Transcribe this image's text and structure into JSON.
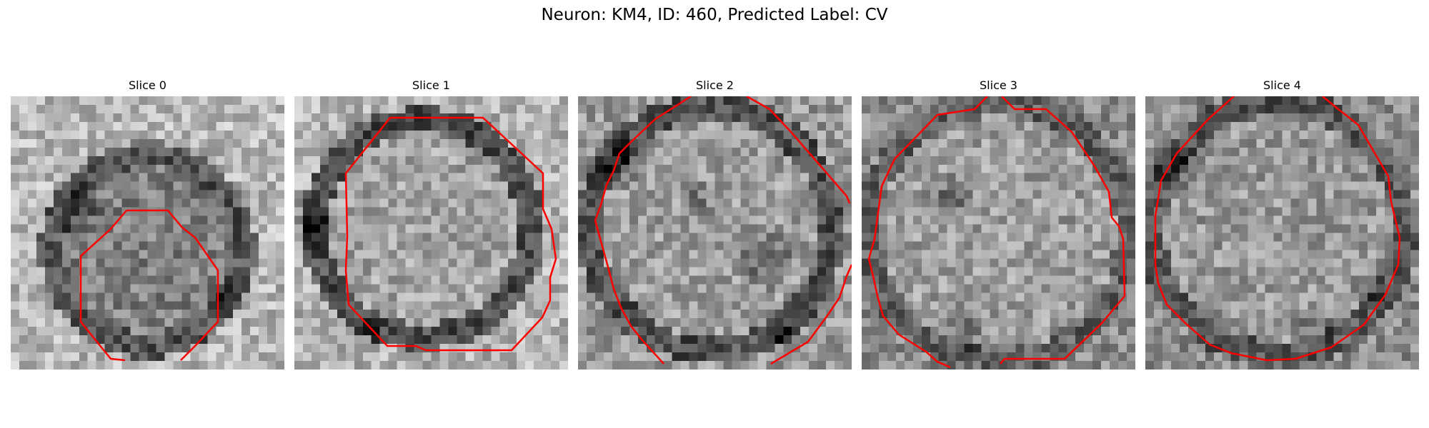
{
  "figure": {
    "title": "Neuron: KM4, ID: 460, Predicted Label: CV",
    "contour_color": "#ff0000",
    "panels": [
      {
        "title": "Slice 0"
      },
      {
        "title": "Slice 1"
      },
      {
        "title": "Slice 2"
      },
      {
        "title": "Slice 3"
      },
      {
        "title": "Slice 4"
      }
    ]
  }
}
